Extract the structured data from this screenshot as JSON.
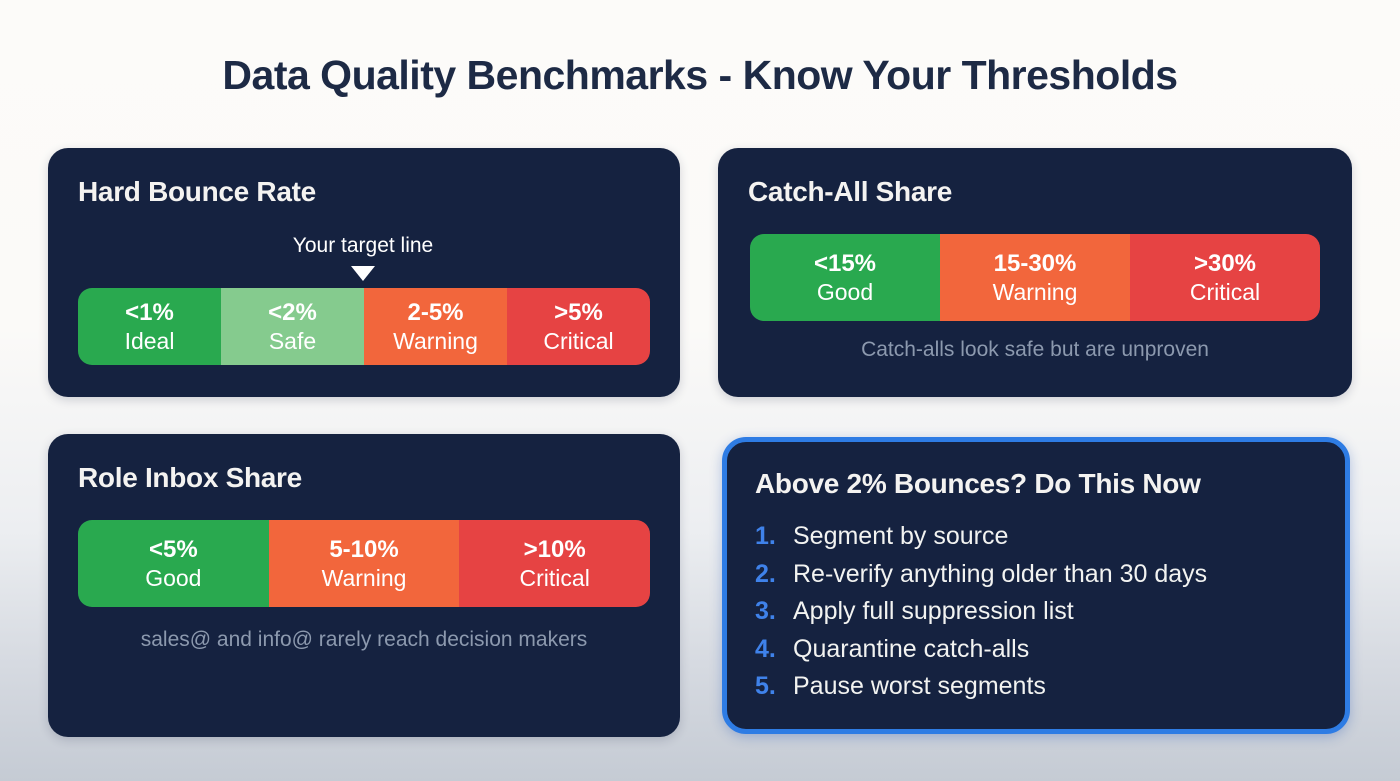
{
  "title": "Data Quality Benchmarks - Know Your Thresholds",
  "colors": {
    "card_background": "#152240",
    "green": "#29a94f",
    "light_green": "#85cb8e",
    "orange": "#f2663c",
    "red": "#e64343",
    "highlight_border_blue": "#2e7ce4",
    "list_number_blue": "#3f82ea",
    "caption_muted": "#8c99ae",
    "title_navy": "#1d2a45"
  },
  "cards": {
    "hard_bounce": {
      "title": "Hard Bounce Rate",
      "target_label": "Your target line",
      "segments": [
        {
          "value": "<1%",
          "label": "Ideal",
          "color": "#29a94f"
        },
        {
          "value": "<2%",
          "label": "Safe",
          "color": "#85cb8e"
        },
        {
          "value": "2-5%",
          "label": "Warning",
          "color": "#f2663c"
        },
        {
          "value": ">5%",
          "label": "Critical",
          "color": "#e64343"
        }
      ]
    },
    "catch_all": {
      "title": "Catch-All Share",
      "segments": [
        {
          "value": "<15%",
          "label": "Good",
          "color": "#29a94f"
        },
        {
          "value": "15-30%",
          "label": "Warning",
          "color": "#f2663c"
        },
        {
          "value": ">30%",
          "label": "Critical",
          "color": "#e64343"
        }
      ],
      "caption": "Catch-alls look safe but are unproven"
    },
    "role_inbox": {
      "title": "Role Inbox Share",
      "segments": [
        {
          "value": "<5%",
          "label": "Good",
          "color": "#29a94f"
        },
        {
          "value": "5-10%",
          "label": "Warning",
          "color": "#f2663c"
        },
        {
          "value": ">10%",
          "label": "Critical",
          "color": "#e64343"
        }
      ],
      "caption": "sales@ and info@ rarely reach decision makers"
    },
    "action": {
      "title": "Above 2% Bounces? Do This Now",
      "items": [
        {
          "num": "1.",
          "text": "Segment by source"
        },
        {
          "num": "2.",
          "text": "Re-verify anything older than 30 days"
        },
        {
          "num": "3.",
          "text": "Apply full suppression list"
        },
        {
          "num": "4.",
          "text": "Quarantine catch-alls"
        },
        {
          "num": "5.",
          "text": "Pause worst segments"
        }
      ]
    }
  }
}
